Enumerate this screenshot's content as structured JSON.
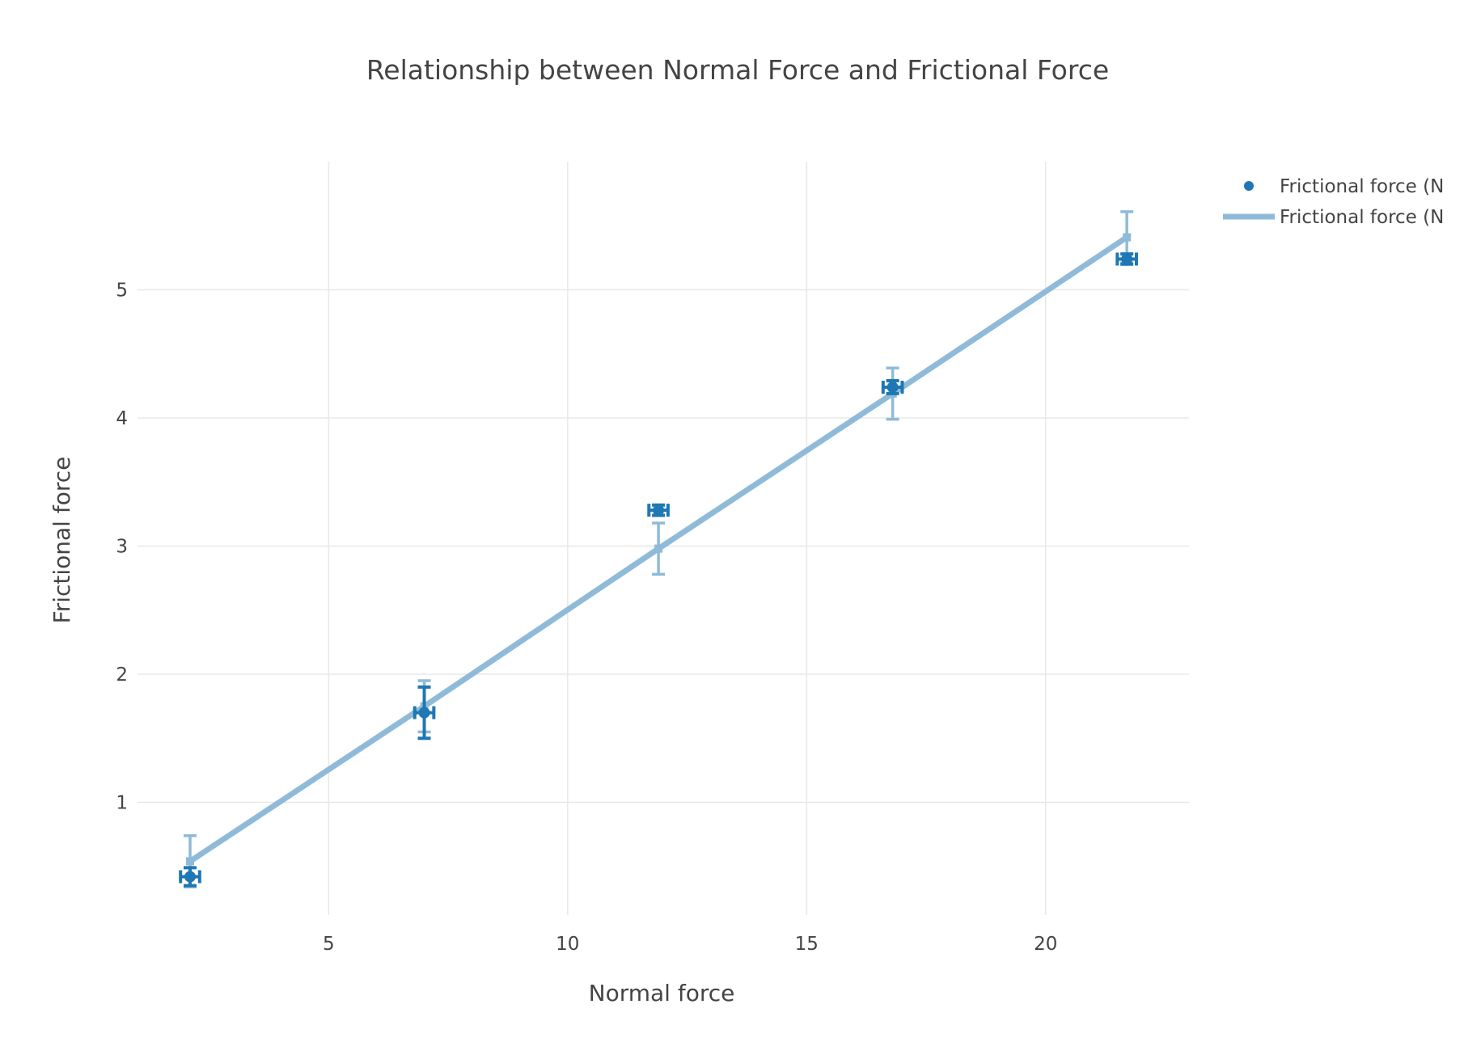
{
  "chart_data": {
    "type": "scatter",
    "title": "Relationship between Normal Force and Frictional Force",
    "xlabel": "Normal force",
    "ylabel": "Frictional force",
    "xlim": [
      1.0,
      23.0
    ],
    "ylim": [
      0.12,
      6.0
    ],
    "xticks": [
      5,
      10,
      15,
      20
    ],
    "yticks": [
      1,
      2,
      3,
      4,
      5
    ],
    "grid": true,
    "legend_position": "top-right",
    "series": [
      {
        "name": "Frictional force (N",
        "kind": "markers",
        "color": "#1f77b4",
        "x": [
          2.1,
          7.0,
          11.9,
          16.8,
          21.7
        ],
        "y": [
          0.42,
          1.7,
          3.28,
          4.24,
          5.24
        ],
        "error_y": [
          0.07,
          0.2,
          0.04,
          0.05,
          0.04
        ],
        "error_x": [
          0.2,
          0.2,
          0.2,
          0.2,
          0.2
        ]
      },
      {
        "name": "Frictional force (N",
        "kind": "line",
        "color": "#8fbbd9",
        "x": [
          2.1,
          7.0,
          11.9,
          16.8,
          21.7
        ],
        "y": [
          0.54,
          1.75,
          2.98,
          4.19,
          5.41
        ],
        "error_y": [
          0.2,
          0.2,
          0.2,
          0.2,
          0.2
        ]
      }
    ]
  }
}
